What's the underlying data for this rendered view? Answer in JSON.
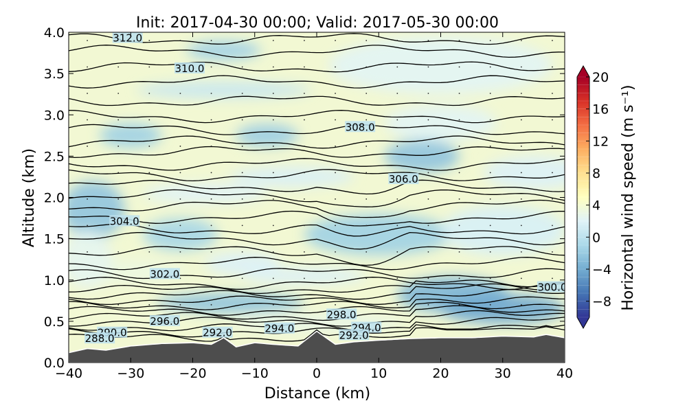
{
  "chart_data": {
    "type": "heatmap",
    "title": "Init: 2017-04-30 00:00; Valid: 2017-05-30 00:00",
    "xlabel": "Distance (km)",
    "ylabel": "Altitude (km)",
    "xlim": [
      -40,
      40
    ],
    "ylim": [
      0.0,
      4.0
    ],
    "xticks": [
      -40,
      -30,
      -20,
      -10,
      0,
      10,
      20,
      30,
      40
    ],
    "xtick_labels": [
      "−40",
      "−30",
      "−20",
      "−10",
      "0",
      "10",
      "20",
      "30",
      "40"
    ],
    "yticks": [
      0.0,
      0.5,
      1.0,
      1.5,
      2.0,
      2.5,
      3.0,
      3.5,
      4.0
    ],
    "ytick_labels": [
      "0.0",
      "0.5",
      "1.0",
      "1.5",
      "2.0",
      "2.5",
      "3.0",
      "3.5",
      "4.0"
    ],
    "colorbar": {
      "label": "Horizontal wind speed (m s⁻¹)",
      "range": [
        -10,
        20
      ],
      "ticks": [
        -8,
        -4,
        0,
        4,
        8,
        12,
        16,
        20
      ],
      "tick_labels": [
        "−8",
        "−4",
        "0",
        "4",
        "8",
        "12",
        "16",
        "20"
      ],
      "extend": "both",
      "colormap": "RdYlBu_r"
    },
    "contour_labels": [
      {
        "text": "312.0",
        "x": -30.5,
        "z": 3.93
      },
      {
        "text": "310.0",
        "x": -20.5,
        "z": 3.56
      },
      {
        "text": "308.0",
        "x": 7,
        "z": 2.85
      },
      {
        "text": "306.0",
        "x": 14,
        "z": 2.22
      },
      {
        "text": "304.0",
        "x": -31,
        "z": 1.71
      },
      {
        "text": "302.0",
        "x": -24.5,
        "z": 1.07
      },
      {
        "text": "300.0",
        "x": 38,
        "z": 0.91
      },
      {
        "text": "298.0",
        "x": 4,
        "z": 0.58
      },
      {
        "text": "296.0",
        "x": -24.5,
        "z": 0.5
      },
      {
        "text": "294.0",
        "x": -6,
        "z": 0.41
      },
      {
        "text": "294.0",
        "x": 8,
        "z": 0.42
      },
      {
        "text": "292.0",
        "x": -16,
        "z": 0.36
      },
      {
        "text": "292.0",
        "x": 6,
        "z": 0.33
      },
      {
        "text": "290.0",
        "x": -33,
        "z": 0.36
      },
      {
        "text": "288.0",
        "x": -35,
        "z": 0.29
      }
    ],
    "theta_levels_K": [
      288,
      290,
      292,
      294,
      296,
      298,
      300,
      302,
      304,
      306,
      308,
      310,
      312
    ],
    "terrain_km": {
      "x": [
        -40,
        -37,
        -34,
        -30,
        -25,
        -20,
        -17,
        -15,
        -13,
        -10,
        -7,
        -3,
        0,
        3,
        6,
        10,
        15,
        20,
        25,
        30,
        35,
        37,
        40
      ],
      "z": [
        0.12,
        0.17,
        0.15,
        0.2,
        0.23,
        0.24,
        0.22,
        0.3,
        0.19,
        0.24,
        0.22,
        0.2,
        0.38,
        0.22,
        0.25,
        0.27,
        0.29,
        0.3,
        0.3,
        0.32,
        0.31,
        0.34,
        0.3
      ]
    },
    "grid": false
  },
  "colors": {
    "terrain": "#4d4d4d",
    "background_field": "#f2f8d3",
    "contour": "#000000"
  }
}
